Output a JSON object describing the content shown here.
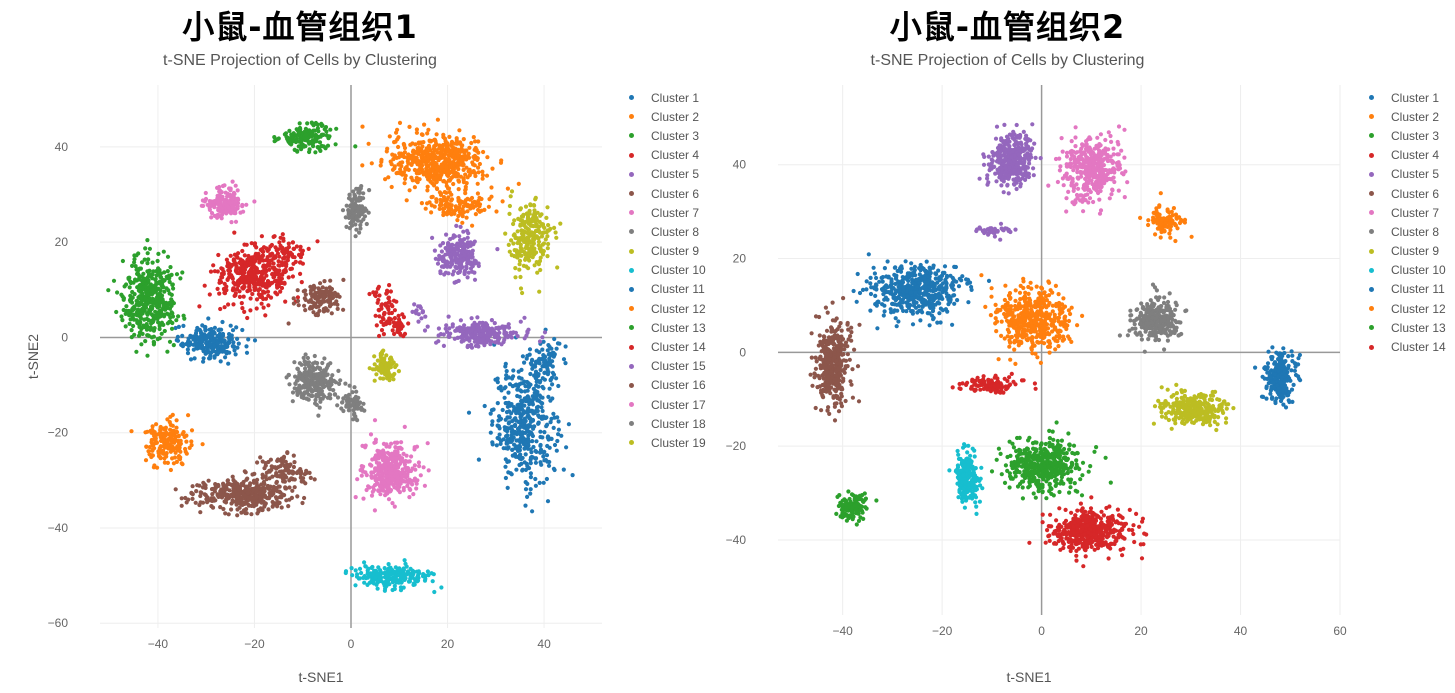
{
  "chart_data": [
    {
      "type": "scatter",
      "title": "小鼠-血管组织1",
      "subtitle": "t-SNE Projection of Cells by Clustering",
      "xlabel": "t-SNE1",
      "ylabel": "t-SNE2",
      "xlim": [
        -52,
        52
      ],
      "ylim": [
        -61,
        53
      ],
      "xticks": [
        -40,
        -20,
        0,
        20,
        40
      ],
      "yticks": [
        -60,
        -40,
        -20,
        0,
        20,
        40
      ],
      "grid": true,
      "legend_position": "right",
      "series": [
        {
          "name": "Cluster 1",
          "color": "#1f77b4",
          "blobs": [
            [
              36,
              -18,
              6,
              11,
              430
            ],
            [
              40,
              -5,
              3,
              5,
              80
            ]
          ]
        },
        {
          "name": "Cluster 2",
          "color": "#ff7f0e",
          "blobs": [
            [
              18,
              37,
              9,
              5,
              520
            ],
            [
              22,
              28,
              7,
              3,
              120
            ]
          ]
        },
        {
          "name": "Cluster 3",
          "color": "#2ca02c",
          "blobs": [
            [
              -9,
              42,
              5,
              2.5,
              150
            ]
          ]
        },
        {
          "name": "Cluster 4",
          "color": "#d62728",
          "blobs": [
            [
              -20,
              13,
              7,
              5,
              380
            ],
            [
              -14,
              18,
              5,
              4,
              80
            ]
          ]
        },
        {
          "name": "Cluster 5",
          "color": "#9467bd",
          "blobs": [
            [
              22,
              17,
              4,
              4,
              200
            ],
            [
              27,
              1,
              7,
              2.5,
              240
            ]
          ]
        },
        {
          "name": "Cluster 6",
          "color": "#8c564b",
          "blobs": [
            [
              -6,
              8,
              4,
              3,
              130
            ]
          ]
        },
        {
          "name": "Cluster 7",
          "color": "#e377c2",
          "blobs": [
            [
              -26,
              28,
              4,
              3,
              150
            ]
          ]
        },
        {
          "name": "Cluster 8",
          "color": "#7f7f7f",
          "blobs": [
            [
              1,
              27,
              2,
              4,
              110
            ]
          ]
        },
        {
          "name": "Cluster 9",
          "color": "#bcbd22",
          "blobs": [
            [
              37,
              21,
              4,
              6,
              250
            ]
          ]
        },
        {
          "name": "Cluster 10",
          "color": "#17becf",
          "blobs": [
            [
              8,
              -50,
              7,
              2,
              220
            ]
          ]
        },
        {
          "name": "Cluster 11",
          "color": "#1f77b4",
          "blobs": [
            [
              -29,
              -1,
              6,
              3,
              240
            ]
          ]
        },
        {
          "name": "Cluster 12",
          "color": "#ff7f0e",
          "blobs": [
            [
              -38,
              -22,
              4,
              4,
              180
            ]
          ]
        },
        {
          "name": "Cluster 13",
          "color": "#2ca02c",
          "blobs": [
            [
              -42,
              8,
              5,
              8,
              420
            ]
          ]
        },
        {
          "name": "Cluster 14",
          "color": "#d62728",
          "blobs": [
            [
              7,
              6,
              2,
              4,
              60
            ],
            [
              10,
              2,
              1.5,
              2,
              30
            ]
          ]
        },
        {
          "name": "Cluster 15",
          "color": "#9467bd",
          "blobs": [
            [
              14,
              6,
              1.5,
              1.5,
              15
            ]
          ]
        },
        {
          "name": "Cluster 16",
          "color": "#8c564b",
          "blobs": [
            [
              -22,
              -33,
              9,
              3,
              380
            ],
            [
              -14,
              -28,
              5,
              3,
              100
            ]
          ]
        },
        {
          "name": "Cluster 17",
          "color": "#e377c2",
          "blobs": [
            [
              8,
              -28,
              5,
              5,
              380
            ]
          ]
        },
        {
          "name": "Cluster 18",
          "color": "#7f7f7f",
          "blobs": [
            [
              -8,
              -9,
              4,
              4,
              240
            ],
            [
              0,
              -14,
              2,
              3,
              60
            ]
          ]
        },
        {
          "name": "Cluster 19",
          "color": "#bcbd22",
          "blobs": [
            [
              7,
              -6,
              2,
              2.5,
              80
            ]
          ]
        }
      ]
    },
    {
      "type": "scatter",
      "title": "小鼠-血管组织2",
      "subtitle": "t-SNE Projection of Cells by Clustering",
      "xlabel": "t-SNE1",
      "ylabel": "t-SNE2",
      "xlim": [
        -53,
        60
      ],
      "ylim": [
        -56,
        57
      ],
      "xticks": [
        -40,
        -20,
        0,
        20,
        40,
        60
      ],
      "yticks": [
        -40,
        -20,
        0,
        20,
        40
      ],
      "grid": true,
      "legend_position": "right",
      "series": [
        {
          "name": "Cluster 1",
          "color": "#1f77b4",
          "blobs": [
            [
              -25,
              13,
              8,
              5,
              480
            ]
          ]
        },
        {
          "name": "Cluster 2",
          "color": "#ff7f0e",
          "blobs": [
            [
              -2,
              7,
              7,
              6,
              450
            ]
          ]
        },
        {
          "name": "Cluster 3",
          "color": "#2ca02c",
          "blobs": [
            [
              0,
              -24,
              7,
              5,
              460
            ]
          ]
        },
        {
          "name": "Cluster 4",
          "color": "#d62728",
          "blobs": [
            [
              10,
              -38,
              7,
              4,
              460
            ]
          ]
        },
        {
          "name": "Cluster 5",
          "color": "#9467bd",
          "blobs": [
            [
              -6,
              41,
              4,
              5,
              380
            ],
            [
              -10,
              26,
              3,
              1,
              40
            ]
          ]
        },
        {
          "name": "Cluster 6",
          "color": "#8c564b",
          "blobs": [
            [
              -42,
              -2,
              3,
              8,
              380
            ]
          ]
        },
        {
          "name": "Cluster 7",
          "color": "#e377c2",
          "blobs": [
            [
              10,
              39,
              5,
              6,
              380
            ]
          ]
        },
        {
          "name": "Cluster 8",
          "color": "#7f7f7f",
          "blobs": [
            [
              23,
              7,
              4,
              4,
              280
            ]
          ]
        },
        {
          "name": "Cluster 9",
          "color": "#bcbd22",
          "blobs": [
            [
              30,
              -12,
              6,
              3,
              280
            ]
          ]
        },
        {
          "name": "Cluster 10",
          "color": "#17becf",
          "blobs": [
            [
              -15,
              -27,
              2,
              5,
              220
            ]
          ]
        },
        {
          "name": "Cluster 11",
          "color": "#1f77b4",
          "blobs": [
            [
              48,
              -5,
              3,
              5,
              220
            ]
          ]
        },
        {
          "name": "Cluster 12",
          "color": "#ff7f0e",
          "blobs": [
            [
              25,
              28,
              3,
              3,
              90
            ]
          ]
        },
        {
          "name": "Cluster 13",
          "color": "#2ca02c",
          "blobs": [
            [
              -38,
              -33,
              2.5,
              2.5,
              120
            ]
          ]
        },
        {
          "name": "Cluster 14",
          "color": "#d62728",
          "blobs": [
            [
              -10,
              -7,
              5,
              1.5,
              110
            ]
          ]
        }
      ]
    }
  ]
}
